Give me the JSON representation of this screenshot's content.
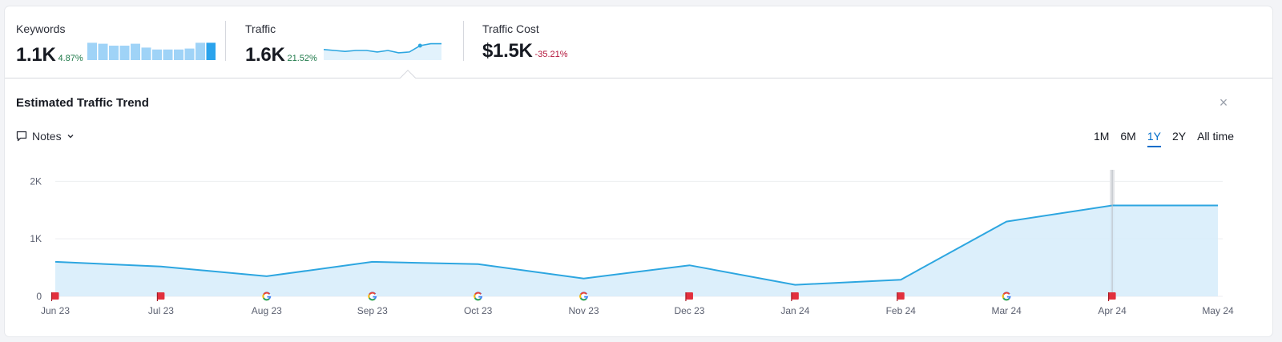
{
  "metrics": [
    {
      "label": "Keywords",
      "value": "1.1K",
      "delta": "4.87%",
      "delta_sign": "positive"
    },
    {
      "label": "Traffic",
      "value": "1.6K",
      "delta": "21.52%",
      "delta_sign": "positive"
    },
    {
      "label": "Traffic Cost",
      "value": "$1.5K",
      "delta": "-35.21%",
      "delta_sign": "negative"
    }
  ],
  "keywords_sparkbars": [
    0.9,
    0.85,
    0.75,
    0.75,
    0.85,
    0.65,
    0.55,
    0.55,
    0.55,
    0.6,
    0.9,
    0.9
  ],
  "traffic_sparkline": [
    0.55,
    0.5,
    0.45,
    0.5,
    0.5,
    0.42,
    0.5,
    0.38,
    0.42,
    0.75,
    0.85,
    0.85
  ],
  "panel": {
    "title": "Estimated Traffic Trend",
    "close_icon": "×",
    "notes_label": "Notes",
    "time_ranges": [
      "1M",
      "6M",
      "1Y",
      "2Y",
      "All time"
    ],
    "active_range": "1Y"
  },
  "colors": {
    "line": "#2da6e0",
    "area": "#d6ecfa",
    "flag": "#e2303d",
    "active_tab": "#006dca"
  },
  "chart_data": {
    "type": "area",
    "x": [
      "Jun 23",
      "Jul 23",
      "Aug 23",
      "Sep 23",
      "Oct 23",
      "Nov 23",
      "Dec 23",
      "Jan 24",
      "Feb 24",
      "Mar 24",
      "Apr 24",
      "May 24"
    ],
    "values": [
      600,
      520,
      350,
      600,
      560,
      310,
      540,
      200,
      290,
      1300,
      1580,
      1580
    ],
    "y_ticks": [
      "0",
      "1K",
      "2K"
    ],
    "ylim": [
      0,
      2200
    ],
    "grid": true,
    "markers": [
      "flag",
      "flag",
      "google",
      "google",
      "google",
      "google",
      "flag",
      "flag",
      "flag",
      "google",
      "flag",
      null
    ]
  }
}
